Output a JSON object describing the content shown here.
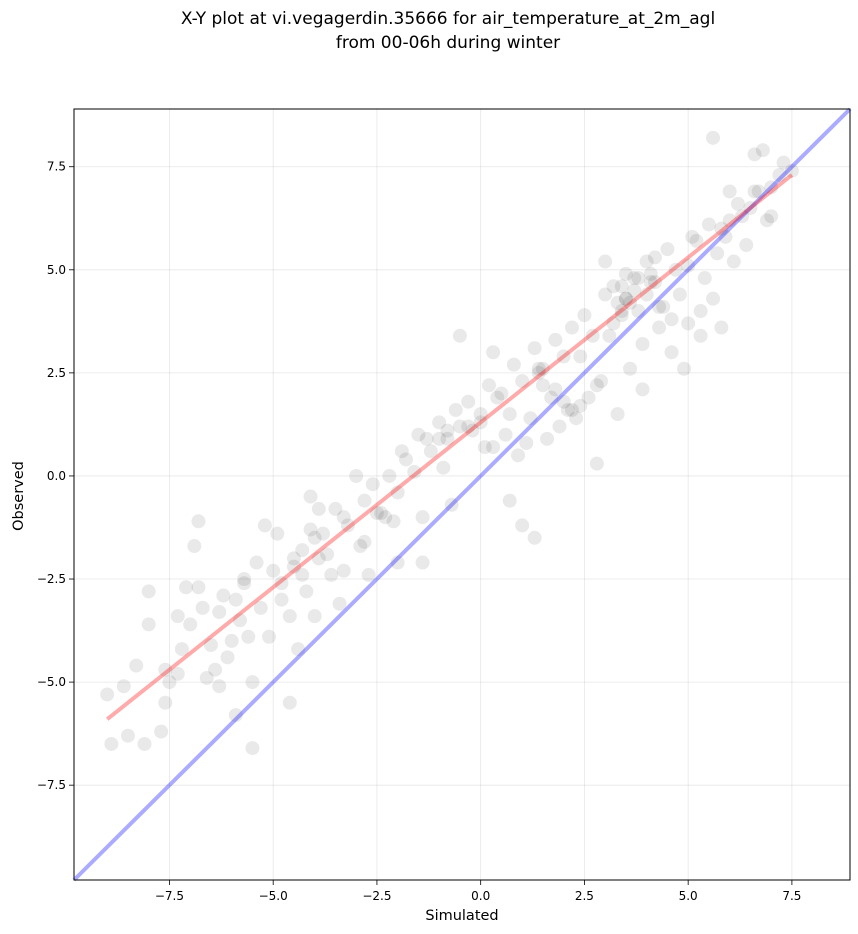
{
  "chart_data": {
    "type": "scatter",
    "title_lines": [
      "X-Y plot at vi.vegagerdin.35666 for air_temperature_at_2m_agl",
      "from 00-06h during winter"
    ],
    "xlabel": "Simulated",
    "ylabel": "Observed",
    "xlim": [
      -9.8,
      8.9
    ],
    "ylim": [
      -9.8,
      8.9
    ],
    "xticks": [
      -7.5,
      -5.0,
      -2.5,
      0.0,
      2.5,
      5.0,
      7.5
    ],
    "yticks": [
      -7.5,
      -5.0,
      -2.5,
      0.0,
      2.5,
      5.0,
      7.5
    ],
    "xtick_labels": [
      "−7.5",
      "−5.0",
      "−2.5",
      "0.0",
      "2.5",
      "5.0",
      "7.5"
    ],
    "ytick_labels": [
      "−7.5",
      "−5.0",
      "−2.5",
      "0.0",
      "2.5",
      "5.0",
      "7.5"
    ],
    "grid": true,
    "colors": {
      "points": "#000000",
      "identity_line": "#0000ff",
      "fit_line": "#ff0000"
    },
    "lines": [
      {
        "kind": "identity",
        "x": [
          -9.8,
          8.9
        ],
        "y": [
          -9.8,
          8.9
        ]
      },
      {
        "kind": "fit",
        "x": [
          -9.0,
          7.5
        ],
        "y": [
          -5.9,
          7.3
        ]
      }
    ],
    "series": [
      {
        "x": [
          -9.0,
          -8.9,
          -8.6,
          -8.5,
          -8.3,
          -8.1,
          -8.0,
          -8.0,
          -7.7,
          -7.6,
          -7.6,
          -7.5,
          -7.3,
          -7.2,
          -7.0,
          -6.8,
          -6.9,
          -6.7,
          -6.5,
          -6.3,
          -6.2,
          -6.0,
          -5.9,
          -5.8,
          -5.7,
          -5.6,
          -5.5,
          -6.3,
          -6.6,
          -6.1,
          -5.9,
          -5.7,
          -5.3,
          -5.0,
          -4.8,
          -4.5,
          -4.9,
          -5.2,
          -5.4,
          -4.3,
          -4.1,
          -3.8,
          -3.5,
          -3.3,
          -3.0,
          -2.8,
          -2.5,
          -2.2,
          -2.0,
          -1.8,
          -1.5,
          -1.2,
          -1.0,
          -0.8,
          -0.5,
          -0.3,
          0.0,
          0.2,
          0.5,
          0.8,
          1.0,
          1.3,
          1.5,
          1.8,
          2.0,
          2.2,
          2.5,
          2.7,
          3.0,
          3.2,
          3.5,
          3.7,
          4.0,
          4.2,
          4.5,
          4.7,
          5.0,
          5.2,
          5.5,
          5.7,
          6.0,
          6.2,
          6.5,
          6.7,
          7.0,
          7.2,
          -4.6,
          -4.2,
          -3.9,
          -3.6,
          -3.2,
          -2.9,
          -2.6,
          -2.3,
          -1.9,
          -1.6,
          -1.3,
          -0.9,
          -0.6,
          -0.2,
          0.1,
          0.4,
          0.7,
          1.1,
          1.4,
          1.7,
          2.1,
          2.4,
          2.8,
          3.1,
          3.4,
          3.8,
          4.1,
          4.4,
          4.8,
          5.1,
          5.4,
          5.8,
          6.1,
          6.4,
          -6.8,
          -7.1,
          -6.4,
          -5.1,
          -4.4,
          -4.0,
          -3.4,
          -2.7,
          -2.1,
          -1.4,
          -0.7,
          0.3,
          0.9,
          1.6,
          2.3,
          2.9,
          3.3,
          3.6,
          3.9,
          4.3,
          4.6,
          5.3,
          5.6,
          5.9,
          6.3,
          6.6,
          6.9,
          7.3,
          7.5,
          2.0,
          1.8,
          2.2,
          1.5,
          2.4,
          2.6,
          3.4,
          3.5,
          3.2,
          3.7,
          3.6,
          4.0,
          3.3,
          4.1,
          4.3,
          3.0,
          3.8,
          3.5,
          4.2,
          3.4,
          -0.5,
          -0.8,
          -0.3,
          -1.0,
          0.0,
          0.3,
          0.6,
          1.2,
          1.9,
          1.4,
          -4.3,
          -4.5,
          -4.0,
          -3.7,
          -4.8,
          -3.3,
          -3.9,
          -4.1,
          -2.8,
          -2.4,
          5.6,
          4.9,
          5.0,
          5.8,
          6.6,
          -7.3,
          -5.5,
          -4.6,
          -2.0,
          -1.4,
          1.0,
          1.3,
          0.7,
          2.8,
          3.9,
          5.3,
          4.6,
          6.0,
          6.8,
          7.0
        ],
        "y": [
          -5.3,
          -6.5,
          -5.1,
          -6.3,
          -4.6,
          -6.5,
          -3.6,
          -2.8,
          -6.2,
          -5.5,
          -4.7,
          -5.0,
          -3.4,
          -4.2,
          -3.6,
          -2.7,
          -1.7,
          -3.2,
          -4.1,
          -3.3,
          -2.9,
          -4.0,
          -5.8,
          -3.5,
          -2.5,
          -3.9,
          -6.6,
          -5.1,
          -4.9,
          -4.4,
          -3.0,
          -2.6,
          -3.2,
          -2.3,
          -3.0,
          -2.0,
          -1.4,
          -1.2,
          -2.1,
          -1.8,
          -0.5,
          -1.4,
          -0.8,
          -1.0,
          0.0,
          -0.6,
          -0.9,
          0.0,
          -0.4,
          0.4,
          1.0,
          0.6,
          1.3,
          0.9,
          1.2,
          1.8,
          1.5,
          2.2,
          2.0,
          2.7,
          2.3,
          3.1,
          2.6,
          3.3,
          2.9,
          3.6,
          3.9,
          3.4,
          4.4,
          3.7,
          4.3,
          4.8,
          5.2,
          4.7,
          5.5,
          5.0,
          5.1,
          5.7,
          6.1,
          5.4,
          6.2,
          6.6,
          6.5,
          6.9,
          7.0,
          7.3,
          -3.4,
          -2.8,
          -2.0,
          -2.4,
          -1.2,
          -1.7,
          -0.2,
          -1.0,
          0.6,
          0.1,
          0.9,
          0.2,
          1.6,
          1.1,
          0.7,
          1.9,
          1.5,
          0.8,
          2.5,
          1.9,
          1.6,
          2.9,
          2.2,
          3.4,
          3.9,
          4.0,
          4.9,
          4.1,
          4.4,
          5.8,
          4.8,
          6.0,
          5.2,
          5.6,
          -1.1,
          -2.7,
          -4.7,
          -3.9,
          -4.2,
          -3.4,
          -3.1,
          -2.4,
          -1.1,
          -2.1,
          -0.7,
          3.0,
          0.5,
          0.9,
          1.4,
          2.3,
          1.5,
          2.6,
          3.2,
          3.6,
          3.8,
          4.0,
          4.3,
          5.8,
          6.3,
          6.9,
          6.2,
          7.6,
          7.4,
          1.8,
          2.1,
          1.6,
          2.2,
          1.7,
          1.9,
          4.6,
          4.3,
          4.6,
          4.5,
          4.2,
          4.4,
          4.2,
          4.7,
          4.1,
          5.2,
          4.8,
          4.9,
          5.3,
          4.0,
          3.4,
          1.1,
          1.2,
          0.9,
          1.3,
          0.7,
          1.0,
          1.4,
          1.2,
          2.6,
          -2.4,
          -2.2,
          -1.5,
          -1.9,
          -2.6,
          -2.3,
          -0.8,
          -1.3,
          -1.6,
          -0.9,
          8.2,
          2.6,
          3.7,
          3.6,
          7.8,
          -4.8,
          -5.0,
          -5.5,
          -2.1,
          -1.0,
          -1.2,
          -1.5,
          -0.6,
          0.3,
          2.1,
          3.4,
          3.0,
          6.9,
          7.9,
          6.3
        ]
      }
    ]
  }
}
